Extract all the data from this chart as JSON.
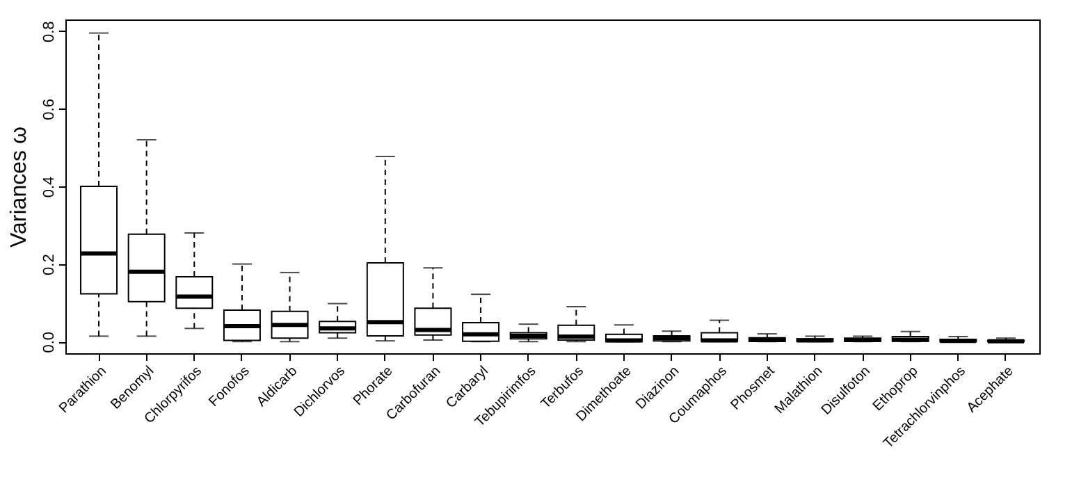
{
  "chart_data": {
    "type": "box",
    "ylabel": "Variances ω",
    "categories": [
      "Parathion",
      "Benomyl",
      "Chlorpyrifos",
      "Fonofos",
      "Aldicarb",
      "Dichlorvos",
      "Phorate",
      "Carbofuran",
      "Carbaryl",
      "Tebupirimfos",
      "Terbufos",
      "Dimethoate",
      "Diazinon",
      "Coumaphos",
      "Phosmet",
      "Malathion",
      "Disulfoton",
      "Ethoprop",
      "Tetrachlorvinphos",
      "Acephate"
    ],
    "boxes": [
      {
        "low": 0.014,
        "q1": 0.123,
        "median": 0.227,
        "q3": 0.4,
        "high": 0.795
      },
      {
        "low": 0.014,
        "q1": 0.103,
        "median": 0.18,
        "q3": 0.277,
        "high": 0.52
      },
      {
        "low": 0.034,
        "q1": 0.086,
        "median": 0.116,
        "q3": 0.167,
        "high": 0.28
      },
      {
        "low": 0.0,
        "q1": 0.003,
        "median": 0.04,
        "q3": 0.081,
        "high": 0.2
      },
      {
        "low": 0.0,
        "q1": 0.009,
        "median": 0.043,
        "q3": 0.078,
        "high": 0.178
      },
      {
        "low": 0.009,
        "q1": 0.023,
        "median": 0.034,
        "q3": 0.052,
        "high": 0.098
      },
      {
        "low": 0.002,
        "q1": 0.015,
        "median": 0.05,
        "q3": 0.203,
        "high": 0.477
      },
      {
        "low": 0.004,
        "q1": 0.017,
        "median": 0.03,
        "q3": 0.086,
        "high": 0.19
      },
      {
        "low": 0.0,
        "q1": 0.001,
        "median": 0.019,
        "q3": 0.049,
        "high": 0.122
      },
      {
        "low": 0.0,
        "q1": 0.007,
        "median": 0.015,
        "q3": 0.023,
        "high": 0.045
      },
      {
        "low": 0.0,
        "q1": 0.004,
        "median": 0.013,
        "q3": 0.042,
        "high": 0.09
      },
      {
        "low": 0.0,
        "q1": 0.0,
        "median": 0.003,
        "q3": 0.019,
        "high": 0.043
      },
      {
        "low": 0.0,
        "q1": 0.002,
        "median": 0.009,
        "q3": 0.015,
        "high": 0.027
      },
      {
        "low": 0.0,
        "q1": 0.001,
        "median": 0.003,
        "q3": 0.023,
        "high": 0.055
      },
      {
        "low": 0.0,
        "q1": 0.001,
        "median": 0.004,
        "q3": 0.01,
        "high": 0.02
      },
      {
        "low": 0.0,
        "q1": 0.001,
        "median": 0.003,
        "q3": 0.007,
        "high": 0.014
      },
      {
        "low": 0.0,
        "q1": 0.001,
        "median": 0.004,
        "q3": 0.009,
        "high": 0.014
      },
      {
        "low": 0.0,
        "q1": 0.001,
        "median": 0.005,
        "q3": 0.013,
        "high": 0.026
      },
      {
        "low": 0.0,
        "q1": 0.0,
        "median": 0.002,
        "q3": 0.006,
        "high": 0.013
      },
      {
        "low": 0.0,
        "q1": 0.0,
        "median": 0.001,
        "q3": 0.003,
        "high": 0.009
      }
    ],
    "ylim": [
      -0.03,
      0.83
    ],
    "yticks": [
      {
        "value": 0,
        "label": "0.0"
      },
      {
        "value": 0.2,
        "label": "0.2"
      },
      {
        "value": 0.4,
        "label": "0.4"
      },
      {
        "value": 0.6,
        "label": "0.6"
      },
      {
        "value": 0.8,
        "label": "0.8"
      }
    ],
    "grid": false
  }
}
